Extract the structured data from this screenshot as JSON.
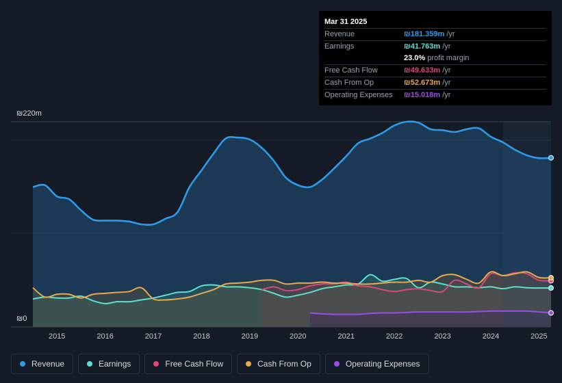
{
  "tooltip": {
    "date": "Mar 31 2025",
    "rows": [
      {
        "label": "Revenue",
        "value": "₪181.359m",
        "unit": " /yr",
        "color": "#2f9be8"
      },
      {
        "label": "Earnings",
        "value": "₪41.763m",
        "unit": " /yr",
        "color": "#5ee0cf"
      },
      {
        "label": "",
        "value": "23.0%",
        "unit": " profit margin",
        "color": "#ffffff"
      },
      {
        "label": "Free Cash Flow",
        "value": "₪49.633m",
        "unit": " /yr",
        "color": "#d9477d"
      },
      {
        "label": "Cash From Op",
        "value": "₪52.673m",
        "unit": " /yr",
        "color": "#e8a94a"
      },
      {
        "label": "Operating Expenses",
        "value": "₪15.018m",
        "unit": " /yr",
        "color": "#9b4de6"
      }
    ]
  },
  "legend": [
    {
      "label": "Revenue",
      "color": "#2f9be8"
    },
    {
      "label": "Earnings",
      "color": "#5ee0cf"
    },
    {
      "label": "Free Cash Flow",
      "color": "#d9477d"
    },
    {
      "label": "Cash From Op",
      "color": "#e8a94a"
    },
    {
      "label": "Operating Expenses",
      "color": "#9b4de6"
    }
  ],
  "chart_data": {
    "type": "area",
    "title": "",
    "y_top_label": "₪220m",
    "y_bottom_label": "₪0",
    "ylim": [
      0,
      220
    ],
    "xlim": [
      2014.5,
      2025.25
    ],
    "x_ticks": [
      "2015",
      "2016",
      "2017",
      "2018",
      "2019",
      "2020",
      "2021",
      "2022",
      "2023",
      "2024",
      "2025"
    ],
    "series": [
      {
        "name": "Revenue",
        "color": "#2f9be8",
        "x": [
          2014.5,
          2014.75,
          2015.0,
          2015.25,
          2015.5,
          2015.75,
          2016.0,
          2016.25,
          2016.5,
          2016.75,
          2017.0,
          2017.25,
          2017.5,
          2017.75,
          2018.0,
          2018.25,
          2018.5,
          2018.75,
          2019.0,
          2019.25,
          2019.5,
          2019.75,
          2020.0,
          2020.25,
          2020.5,
          2020.75,
          2021.0,
          2021.25,
          2021.5,
          2021.75,
          2022.0,
          2022.25,
          2022.5,
          2022.75,
          2023.0,
          2023.25,
          2023.5,
          2023.75,
          2024.0,
          2024.25,
          2024.5,
          2024.75,
          2025.0,
          2025.25
        ],
        "values": [
          150,
          152,
          140,
          137,
          125,
          115,
          114,
          114,
          113,
          110,
          110,
          116,
          123,
          150,
          168,
          186,
          202,
          203,
          201,
          192,
          178,
          160,
          152,
          150,
          158,
          170,
          183,
          197,
          202,
          208,
          216,
          220,
          219,
          212,
          211,
          209,
          212,
          213,
          204,
          198,
          190,
          184,
          181,
          181.359
        ]
      },
      {
        "name": "Earnings",
        "color": "#5ee0cf",
        "x": [
          2014.5,
          2014.75,
          2015.0,
          2015.25,
          2015.5,
          2015.75,
          2016.0,
          2016.25,
          2016.5,
          2016.75,
          2017.0,
          2017.25,
          2017.5,
          2017.75,
          2018.0,
          2018.25,
          2018.5,
          2018.75,
          2019.0,
          2019.25,
          2019.5,
          2019.75,
          2020.0,
          2020.25,
          2020.5,
          2020.75,
          2021.0,
          2021.25,
          2021.5,
          2021.75,
          2022.0,
          2022.25,
          2022.5,
          2022.75,
          2023.0,
          2023.25,
          2023.5,
          2023.75,
          2024.0,
          2024.25,
          2024.5,
          2024.75,
          2025.0,
          2025.25
        ],
        "values": [
          30,
          32,
          31,
          31,
          33,
          28,
          25,
          27,
          27,
          29,
          31,
          34,
          37,
          38,
          44,
          45,
          43,
          43,
          42,
          40,
          36,
          32,
          34,
          37,
          41,
          43,
          45,
          46,
          56,
          49,
          51,
          52,
          42,
          48,
          46,
          43,
          43,
          42,
          43,
          41,
          43,
          42,
          41.7,
          41.763
        ]
      },
      {
        "name": "Free Cash Flow",
        "color": "#d9477d",
        "x": [
          2019.25,
          2019.5,
          2019.75,
          2020.0,
          2020.25,
          2020.5,
          2020.75,
          2021.0,
          2021.25,
          2021.5,
          2021.75,
          2022.0,
          2022.25,
          2022.5,
          2022.75,
          2023.0,
          2023.25,
          2023.5,
          2023.75,
          2024.0,
          2024.25,
          2024.5,
          2024.75,
          2025.0,
          2025.25
        ],
        "values": [
          40,
          43,
          39,
          40,
          44,
          46,
          46,
          48,
          44,
          43,
          40,
          38,
          40,
          41,
          39,
          38,
          50,
          46,
          42,
          57,
          55,
          58,
          57,
          50,
          49.633
        ]
      },
      {
        "name": "Cash From Op",
        "color": "#e8a94a",
        "x": [
          2014.5,
          2014.75,
          2015.0,
          2015.25,
          2015.5,
          2015.75,
          2016.0,
          2016.25,
          2016.5,
          2016.75,
          2017.0,
          2017.25,
          2017.5,
          2017.75,
          2018.0,
          2018.25,
          2018.5,
          2018.75,
          2019.0,
          2019.25,
          2019.5,
          2019.75,
          2020.0,
          2020.25,
          2020.5,
          2020.75,
          2021.0,
          2021.25,
          2021.5,
          2021.75,
          2022.0,
          2022.25,
          2022.5,
          2022.75,
          2023.0,
          2023.25,
          2023.5,
          2023.75,
          2024.0,
          2024.25,
          2024.5,
          2024.75,
          2025.0,
          2025.25
        ],
        "values": [
          42,
          32,
          35,
          35,
          31,
          35,
          36,
          37,
          38,
          42,
          30,
          29,
          30,
          32,
          36,
          40,
          46,
          47,
          48,
          50,
          50,
          46,
          47,
          47,
          48,
          47,
          47,
          46,
          46,
          47,
          48,
          48,
          50,
          48,
          55,
          56,
          51,
          47,
          59,
          55,
          57,
          59,
          53,
          52.673
        ]
      },
      {
        "name": "Operating Expenses",
        "color": "#9b4de6",
        "x": [
          2020.25,
          2020.5,
          2020.75,
          2021.0,
          2021.25,
          2021.5,
          2021.75,
          2022.0,
          2022.25,
          2022.5,
          2022.75,
          2023.0,
          2023.25,
          2023.5,
          2023.75,
          2024.0,
          2024.25,
          2024.5,
          2024.75,
          2025.0,
          2025.25
        ],
        "values": [
          15,
          14,
          13.5,
          13.5,
          13.5,
          14.5,
          15,
          15,
          15.5,
          16,
          16,
          16,
          16,
          16,
          16.5,
          17,
          17,
          17,
          17,
          16,
          15.018
        ]
      }
    ]
  }
}
